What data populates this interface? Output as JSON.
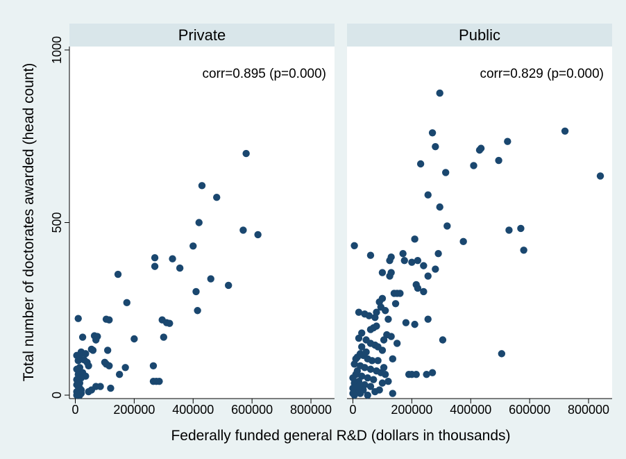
{
  "colors": {
    "background": "#eaf2f3",
    "panel": "#ffffff",
    "strip": "#d9e6ea",
    "marker": "#1a476f"
  },
  "chart_data": {
    "type": "scatter",
    "xlabel": "Federally funded general R&D (dollars in thousands)",
    "ylabel": "Total number of doctorates awarded (head count)",
    "xlim": [
      -20000,
      880000
    ],
    "ylim": [
      -10,
      1010
    ],
    "xticks": [
      0,
      200000,
      400000,
      600000,
      800000
    ],
    "yticks": [
      0,
      500,
      1000
    ],
    "xtick_labels": [
      "0",
      "200000",
      "400000",
      "600000",
      "800000"
    ],
    "ytick_labels": [
      "0",
      "500",
      "1000"
    ],
    "grid": false,
    "panels": [
      {
        "title": "Private",
        "annotation": "corr=0.895 (p=0.000)",
        "points": [
          [
            580000,
            700
          ],
          [
            430000,
            607
          ],
          [
            480000,
            573
          ],
          [
            420000,
            500
          ],
          [
            570000,
            478
          ],
          [
            620000,
            465
          ],
          [
            400000,
            432
          ],
          [
            330000,
            395
          ],
          [
            270000,
            398
          ],
          [
            270000,
            373
          ],
          [
            355000,
            368
          ],
          [
            145000,
            350
          ],
          [
            460000,
            337
          ],
          [
            520000,
            318
          ],
          [
            410000,
            300
          ],
          [
            175000,
            268
          ],
          [
            415000,
            245
          ],
          [
            105000,
            220
          ],
          [
            115000,
            218
          ],
          [
            295000,
            218
          ],
          [
            310000,
            210
          ],
          [
            320000,
            208
          ],
          [
            10000,
            222
          ],
          [
            200000,
            163
          ],
          [
            300000,
            168
          ],
          [
            25000,
            168
          ],
          [
            65000,
            172
          ],
          [
            75000,
            170
          ],
          [
            70000,
            160
          ],
          [
            55000,
            133
          ],
          [
            60000,
            130
          ],
          [
            110000,
            130
          ],
          [
            20000,
            125
          ],
          [
            35000,
            120
          ],
          [
            5000,
            115
          ],
          [
            15000,
            110
          ],
          [
            10000,
            100
          ],
          [
            30000,
            102
          ],
          [
            40000,
            95
          ],
          [
            100000,
            95
          ],
          [
            105000,
            90
          ],
          [
            115000,
            85
          ],
          [
            45000,
            85
          ],
          [
            15000,
            80
          ],
          [
            5000,
            75
          ],
          [
            25000,
            65
          ],
          [
            10000,
            60
          ],
          [
            170000,
            80
          ],
          [
            150000,
            60
          ],
          [
            35000,
            55
          ],
          [
            20000,
            50
          ],
          [
            5000,
            45
          ],
          [
            10000,
            40
          ],
          [
            15000,
            35
          ],
          [
            265000,
            85
          ],
          [
            265000,
            40
          ],
          [
            275000,
            40
          ],
          [
            285000,
            40
          ],
          [
            70000,
            25
          ],
          [
            85000,
            25
          ],
          [
            120000,
            20
          ],
          [
            55000,
            15
          ],
          [
            45000,
            10
          ],
          [
            5000,
            30
          ],
          [
            10000,
            25
          ],
          [
            15000,
            20
          ],
          [
            20000,
            15
          ],
          [
            5000,
            10
          ],
          [
            10000,
            5
          ],
          [
            20000,
            5
          ],
          [
            15000,
            0
          ],
          [
            5000,
            0
          ]
        ]
      },
      {
        "title": "Public",
        "annotation": "corr=0.829 (p=0.000)",
        "points": [
          [
            295000,
            875
          ],
          [
            720000,
            765
          ],
          [
            270000,
            760
          ],
          [
            525000,
            735
          ],
          [
            280000,
            720
          ],
          [
            435000,
            715
          ],
          [
            430000,
            710
          ],
          [
            495000,
            680
          ],
          [
            230000,
            670
          ],
          [
            410000,
            665
          ],
          [
            315000,
            645
          ],
          [
            840000,
            635
          ],
          [
            255000,
            580
          ],
          [
            295000,
            545
          ],
          [
            320000,
            490
          ],
          [
            570000,
            483
          ],
          [
            530000,
            478
          ],
          [
            375000,
            445
          ],
          [
            580000,
            420
          ],
          [
            5000,
            433
          ],
          [
            210000,
            452
          ],
          [
            290000,
            410
          ],
          [
            170000,
            410
          ],
          [
            60000,
            405
          ],
          [
            130000,
            400
          ],
          [
            175000,
            390
          ],
          [
            220000,
            390
          ],
          [
            200000,
            385
          ],
          [
            240000,
            375
          ],
          [
            130000,
            355
          ],
          [
            280000,
            365
          ],
          [
            125000,
            345
          ],
          [
            100000,
            355
          ],
          [
            125000,
            390
          ],
          [
            255000,
            345
          ],
          [
            215000,
            320
          ],
          [
            240000,
            300
          ],
          [
            220000,
            310
          ],
          [
            140000,
            295
          ],
          [
            150000,
            295
          ],
          [
            160000,
            295
          ],
          [
            100000,
            280
          ],
          [
            90000,
            270
          ],
          [
            95000,
            255
          ],
          [
            80000,
            240
          ],
          [
            110000,
            245
          ],
          [
            145000,
            265
          ],
          [
            20000,
            240
          ],
          [
            40000,
            235
          ],
          [
            55000,
            230
          ],
          [
            75000,
            225
          ],
          [
            120000,
            220
          ],
          [
            255000,
            220
          ],
          [
            180000,
            210
          ],
          [
            210000,
            205
          ],
          [
            80000,
            200
          ],
          [
            60000,
            190
          ],
          [
            70000,
            195
          ],
          [
            30000,
            180
          ],
          [
            20000,
            165
          ],
          [
            115000,
            175
          ],
          [
            105000,
            160
          ],
          [
            130000,
            170
          ],
          [
            150000,
            150
          ],
          [
            305000,
            160
          ],
          [
            60000,
            150
          ],
          [
            75000,
            145
          ],
          [
            85000,
            140
          ],
          [
            100000,
            130
          ],
          [
            45000,
            125
          ],
          [
            25000,
            120
          ],
          [
            35000,
            115
          ],
          [
            15000,
            110
          ],
          [
            10000,
            105
          ],
          [
            50000,
            105
          ],
          [
            65000,
            100
          ],
          [
            135000,
            105
          ],
          [
            5000,
            90
          ],
          [
            25000,
            85
          ],
          [
            40000,
            80
          ],
          [
            60000,
            75
          ],
          [
            80000,
            70
          ],
          [
            95000,
            65
          ],
          [
            110000,
            60
          ],
          [
            10000,
            60
          ],
          [
            30000,
            55
          ],
          [
            50000,
            50
          ],
          [
            70000,
            45
          ],
          [
            20000,
            40
          ],
          [
            5000,
            35
          ],
          [
            40000,
            30
          ],
          [
            60000,
            25
          ],
          [
            15000,
            20
          ],
          [
            35000,
            15
          ],
          [
            10000,
            10
          ],
          [
            25000,
            5
          ],
          [
            50000,
            0
          ],
          [
            5000,
            0
          ],
          [
            0,
            50
          ],
          [
            0,
            20
          ],
          [
            0,
            5
          ],
          [
            200000,
            60
          ],
          [
            190000,
            60
          ],
          [
            215000,
            60
          ],
          [
            250000,
            60
          ],
          [
            270000,
            65
          ],
          [
            505000,
            120
          ],
          [
            135000,
            5
          ],
          [
            90000,
            15
          ],
          [
            100000,
            35
          ],
          [
            120000,
            40
          ],
          [
            105000,
            80
          ],
          [
            85000,
            100
          ],
          [
            30000,
            140
          ],
          [
            45000,
            160
          ],
          [
            15000,
            70
          ],
          [
            20000,
            25
          ],
          [
            75000,
            10
          ]
        ]
      }
    ]
  }
}
